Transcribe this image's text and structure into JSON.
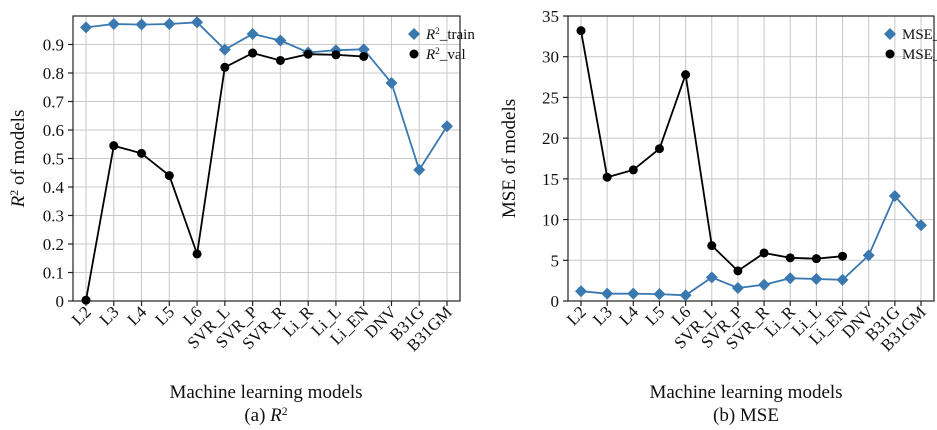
{
  "figure": {
    "panels": [
      {
        "id": "a",
        "caption": "(a) R²",
        "legend_position": "upper-right"
      },
      {
        "id": "b",
        "caption": "(b) MSE",
        "legend_position": "upper-right"
      }
    ]
  },
  "chart_data": [
    {
      "type": "line",
      "xlabel": "Machine learning models",
      "ylabel": "R² of models",
      "caption": "(a) R²",
      "categories": [
        "L2",
        "L3",
        "L4",
        "L5",
        "L6",
        "SVR_L",
        "SVR_P",
        "SVR_R",
        "Li_R",
        "Li_L",
        "Li_EN",
        "DNV",
        "B31G",
        "B31GM"
      ],
      "ylim": [
        0,
        1.0
      ],
      "yticks": [
        0,
        0.1,
        0.2,
        0.3,
        0.4,
        0.5,
        0.6,
        0.7,
        0.8,
        0.9
      ],
      "grid": true,
      "legend_position": "upper-right",
      "series": [
        {
          "name": "R²_train",
          "color": "#3a78b0",
          "marker": "diamond",
          "values": [
            0.96,
            0.972,
            0.97,
            0.972,
            0.978,
            0.882,
            0.937,
            0.914,
            0.872,
            0.88,
            0.883,
            0.765,
            0.46,
            0.613
          ]
        },
        {
          "name": "R²_val",
          "color": "#000000",
          "marker": "circle",
          "values": [
            0.003,
            0.545,
            0.518,
            0.44,
            0.165,
            0.82,
            0.87,
            0.844,
            0.866,
            0.864,
            0.858,
            null,
            null,
            null
          ]
        }
      ]
    },
    {
      "type": "line",
      "xlabel": "Machine learning models",
      "ylabel": "MSE of models",
      "caption": "(b) MSE",
      "categories": [
        "L2",
        "L3",
        "L4",
        "L5",
        "L6",
        "SVR_L",
        "SVR_P",
        "SVR_R",
        "Li_R",
        "Li_L",
        "Li_EN",
        "DNV",
        "B31G",
        "B31GM"
      ],
      "ylim": [
        0,
        35
      ],
      "yticks": [
        0,
        5,
        10,
        15,
        20,
        25,
        30,
        35
      ],
      "grid": true,
      "legend_position": "upper-right",
      "series": [
        {
          "name": "MSE_trai",
          "color": "#3a78b0",
          "marker": "diamond",
          "values": [
            1.2,
            0.9,
            0.9,
            0.85,
            0.7,
            2.9,
            1.6,
            2.0,
            2.8,
            2.7,
            2.6,
            5.6,
            12.9,
            9.3
          ]
        },
        {
          "name": "MSE_val",
          "color": "#000000",
          "marker": "circle",
          "values": [
            33.2,
            15.2,
            16.1,
            18.7,
            27.8,
            6.8,
            3.7,
            5.9,
            5.3,
            5.2,
            5.5,
            null,
            null,
            null
          ]
        }
      ]
    }
  ]
}
